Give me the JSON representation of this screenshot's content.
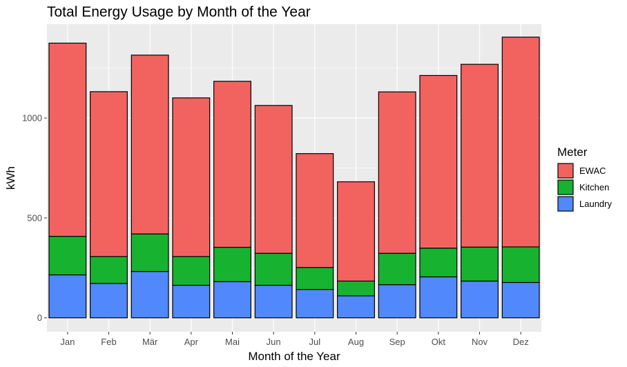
{
  "chart_data": {
    "type": "bar",
    "stacked": true,
    "title": "Total Energy Usage by Month of the Year",
    "xlabel": "Month of the Year",
    "ylabel": "kWh",
    "categories": [
      "Jan",
      "Feb",
      "Mär",
      "Apr",
      "Mai",
      "Jun",
      "Jul",
      "Aug",
      "Sep",
      "Okt",
      "Nov",
      "Dez"
    ],
    "series": [
      {
        "name": "Laundry",
        "color": "#5188fc",
        "values": [
          215,
          172,
          232,
          163,
          181,
          163,
          142,
          110,
          166,
          205,
          184,
          177
        ]
      },
      {
        "name": "Kitchen",
        "color": "#18b231",
        "values": [
          193,
          135,
          188,
          144,
          172,
          160,
          110,
          74,
          157,
          144,
          170,
          178
        ]
      },
      {
        "name": "EWAC",
        "color": "#f26360",
        "values": [
          967,
          825,
          895,
          794,
          831,
          740,
          570,
          497,
          808,
          864,
          915,
          1050
        ]
      }
    ],
    "ylim": [
      -70,
      1470
    ],
    "yticks": [
      0,
      500,
      1000
    ],
    "grid": true,
    "legend": {
      "title": "Meter",
      "position": "right",
      "order": [
        "EWAC",
        "Kitchen",
        "Laundry"
      ]
    }
  }
}
